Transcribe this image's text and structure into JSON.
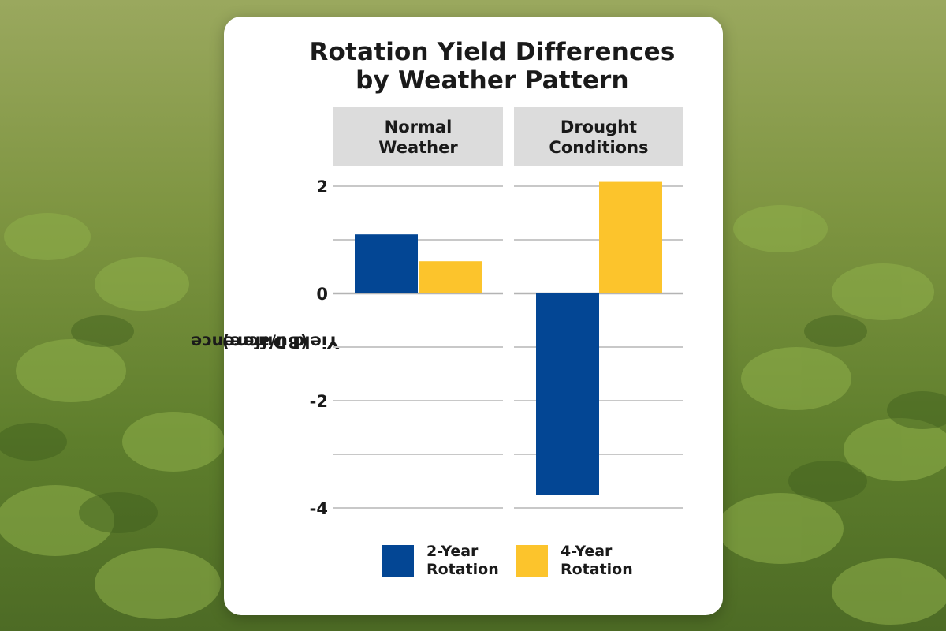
{
  "colors": {
    "two_year": "#034694",
    "four_year": "#fcc42c",
    "grid": "#c8c8c8"
  },
  "title_line1": "Rotation Yield Differences",
  "title_line2": "by Weather Pattern",
  "panels": [
    {
      "label_line1": "Normal",
      "label_line2": "Weather"
    },
    {
      "label_line1": "Drought",
      "label_line2": "Conditions"
    }
  ],
  "ylabel_line1": "Yield Difference",
  "ylabel_line2": "(Bu/acre)",
  "legend": [
    {
      "line1": "2-Year",
      "line2": "Rotation"
    },
    {
      "line1": "4-Year",
      "line2": "Rotation"
    }
  ],
  "chart_data": {
    "type": "bar",
    "title": "Rotation Yield Differences by Weather Pattern",
    "categories": [
      "Normal Weather",
      "Drought Conditions"
    ],
    "series": [
      {
        "name": "2-Year Rotation",
        "values": [
          1.1,
          -3.75
        ]
      },
      {
        "name": "4-Year Rotation",
        "values": [
          0.6,
          2.08
        ]
      }
    ],
    "ylabel": "Yield Difference (Bu/acre)",
    "ylim": [
      -4,
      2
    ],
    "yticks": [
      2,
      0,
      -2,
      -4
    ],
    "ytick_labels": [
      "2",
      "0",
      "-2",
      "-4"
    ],
    "grid": true,
    "legend_position": "bottom"
  }
}
